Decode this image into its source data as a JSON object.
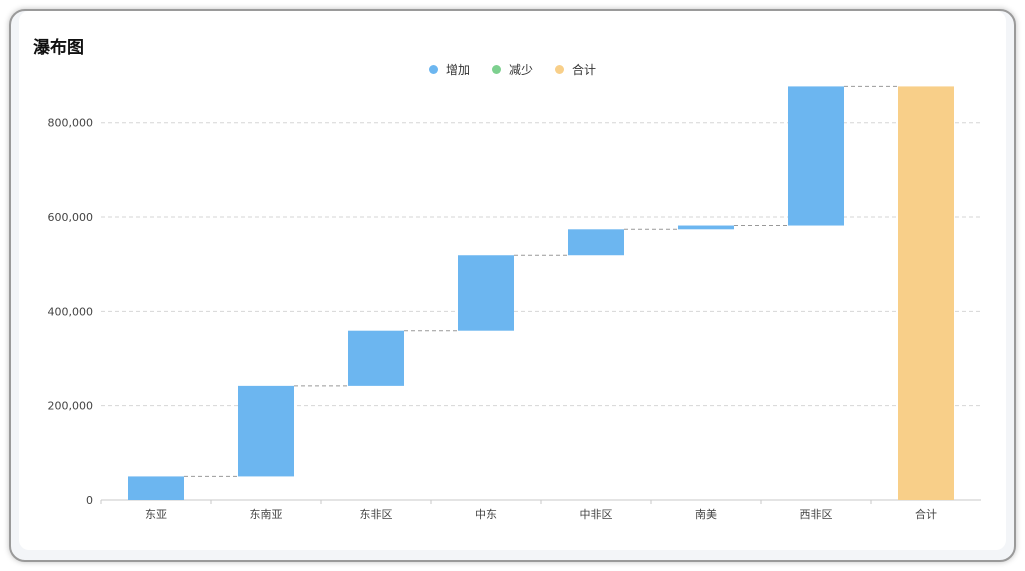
{
  "chart_data": {
    "type": "waterfall",
    "title": "瀑布图",
    "categories": [
      "东亚",
      "东南亚",
      "东非区",
      "中东",
      "中非区",
      "南美",
      "西非区",
      "合计"
    ],
    "increments": [
      50000,
      192000,
      117000,
      160000,
      55000,
      8000,
      295000
    ],
    "total": 877000,
    "yticks": [
      0,
      200000,
      400000,
      600000,
      800000
    ],
    "ytick_labels": [
      "0",
      "200,000",
      "400,000",
      "600,000",
      "800,000"
    ],
    "ylim": [
      0,
      880000
    ],
    "grid": true,
    "legend_position": "top-center",
    "legend": [
      {
        "label": "增加",
        "color": "#6cb6f0"
      },
      {
        "label": "减少",
        "color": "#7dd08f"
      },
      {
        "label": "合计",
        "color": "#f8cf89"
      }
    ],
    "colors": {
      "increase": "#6cb6f0",
      "decrease": "#7dd08f",
      "total": "#f8cf89",
      "connector": "#999999",
      "grid": "#d6d6d6",
      "axis": "#c8c8c8"
    }
  }
}
